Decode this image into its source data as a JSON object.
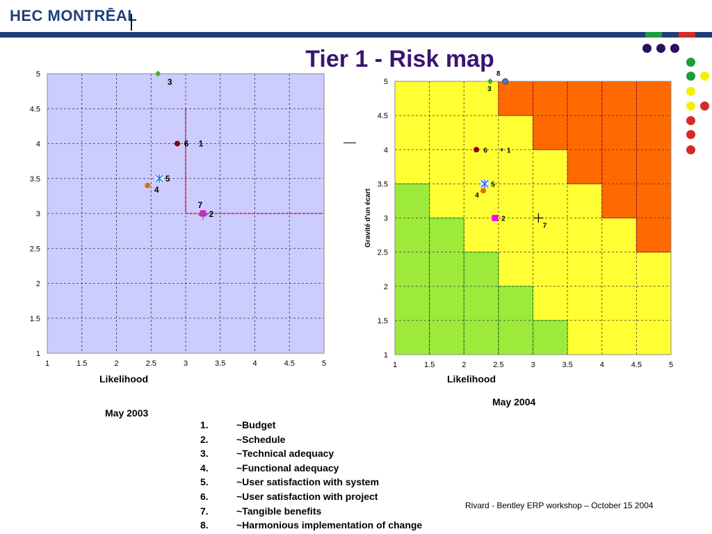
{
  "header": {
    "logo_text": "HEC MONTRĒAL",
    "title": "Tier 1 - Risk map"
  },
  "colors": {
    "brand_blue": "#1f3f7a",
    "title_purple": "#3a1570",
    "accent_green": "#1a9e3c",
    "accent_red": "#d42a2a",
    "accent_yellow": "#f4f000",
    "plot_bg_left": "#ccccff",
    "zone_green": "#9eea3a",
    "zone_yellow": "#ffff33",
    "zone_orange": "#ff6a00"
  },
  "chart_data": [
    {
      "type": "scatter",
      "title": "",
      "xlabel": "Likelihood",
      "ylabel": "",
      "xlim": [
        1,
        5
      ],
      "ylim": [
        1,
        5
      ],
      "xticks": [
        "1",
        "1.5",
        "2",
        "2.5",
        "3",
        "3.5",
        "4",
        "4.5",
        "5"
      ],
      "yticks": [
        "1",
        "1.5",
        "2",
        "2.5",
        "3",
        "3.5",
        "4",
        "4.5",
        "5"
      ],
      "grid": true,
      "threshold": {
        "x": 3,
        "y": 3
      },
      "points": [
        {
          "label": "1",
          "x": 3.0,
          "y": 4.0,
          "marker": "tick",
          "color": "#000000"
        },
        {
          "label": "2",
          "x": 3.25,
          "y": 3.0,
          "marker": "square",
          "color": "#ff00ff"
        },
        {
          "label": "3",
          "x": 2.6,
          "y": 5.0,
          "marker": "diamond",
          "color": "#44aa22"
        },
        {
          "label": "4",
          "x": 2.45,
          "y": 3.4,
          "marker": "circle",
          "color": "#e46c0a"
        },
        {
          "label": "5",
          "x": 2.62,
          "y": 3.5,
          "marker": "asterisk",
          "color": "#3355ff"
        },
        {
          "label": "6",
          "x": 2.88,
          "y": 4.0,
          "marker": "circle",
          "color": "#8b0000"
        },
        {
          "label": "7",
          "x": 3.25,
          "y": 2.98,
          "marker": "plus",
          "color": "#666666"
        }
      ],
      "caption": "May 2003"
    },
    {
      "type": "scatter",
      "title": "",
      "xlabel": "Likelihood",
      "ylabel": "Gravité d'un écart",
      "xlim": [
        1,
        5
      ],
      "ylim": [
        1,
        5
      ],
      "xticks": [
        "1",
        "1.5",
        "2",
        "2.5",
        "3",
        "3.5",
        "4",
        "4.5",
        "5"
      ],
      "yticks": [
        "1",
        "1.5",
        "2",
        "2.5",
        "3",
        "3.5",
        "4",
        "4.5",
        "5"
      ],
      "grid": true,
      "zone_columns": [
        {
          "x": [
            1.0,
            1.5
          ],
          "green_to": 3.5,
          "orange_from": 5
        },
        {
          "x": [
            1.5,
            2.0
          ],
          "green_to": 3.0,
          "orange_from": 5
        },
        {
          "x": [
            2.0,
            2.5
          ],
          "green_to": 2.5,
          "orange_from": 5
        },
        {
          "x": [
            2.5,
            3.0
          ],
          "green_to": 2.0,
          "orange_from": 4.5
        },
        {
          "x": [
            3.0,
            3.5
          ],
          "green_to": 1.5,
          "orange_from": 4.0
        },
        {
          "x": [
            3.5,
            4.0
          ],
          "green_to": 1.0,
          "orange_from": 3.5
        },
        {
          "x": [
            4.0,
            4.5
          ],
          "green_to": 1.0,
          "orange_from": 3.0
        },
        {
          "x": [
            4.5,
            5.0
          ],
          "green_to": 1.0,
          "orange_from": 2.5
        }
      ],
      "points": [
        {
          "label": "1",
          "x": 2.55,
          "y": 4.0,
          "marker": "tick",
          "color": "#000000"
        },
        {
          "label": "2",
          "x": 2.45,
          "y": 3.0,
          "marker": "square",
          "color": "#ff00ff"
        },
        {
          "label": "3",
          "x": 2.38,
          "y": 5.0,
          "marker": "diamond",
          "color": "#44aa22"
        },
        {
          "label": "4",
          "x": 2.28,
          "y": 3.4,
          "marker": "circle",
          "color": "#e46c0a"
        },
        {
          "label": "5",
          "x": 2.3,
          "y": 3.5,
          "marker": "asterisk",
          "color": "#3355ff"
        },
        {
          "label": "6",
          "x": 2.18,
          "y": 4.0,
          "marker": "circle",
          "color": "#8b0000"
        },
        {
          "label": "7",
          "x": 3.08,
          "y": 3.0,
          "marker": "plus",
          "color": "#000000"
        },
        {
          "label": "8",
          "x": 2.6,
          "y": 5.0,
          "marker": "circle",
          "color": "#4a78d4"
        }
      ],
      "caption": "May 2004"
    }
  ],
  "legend": {
    "items": [
      {
        "num": "1.",
        "text": "~Budget"
      },
      {
        "num": "2.",
        "text": "~Schedule"
      },
      {
        "num": "3.",
        "text": "~Technical adequacy"
      },
      {
        "num": "4.",
        "text": "~Functional adequacy"
      },
      {
        "num": "5.",
        "text": "~User satisfaction with system"
      },
      {
        "num": "6.",
        "text": "~User satisfaction with project"
      },
      {
        "num": "7.",
        "text": "~Tangible benefits"
      },
      {
        "num": "8.",
        "text": "~Harmonious implementation of change"
      }
    ]
  },
  "footer": {
    "text": "Rivard  - Bentley ERP workshop – October 15 2004"
  }
}
